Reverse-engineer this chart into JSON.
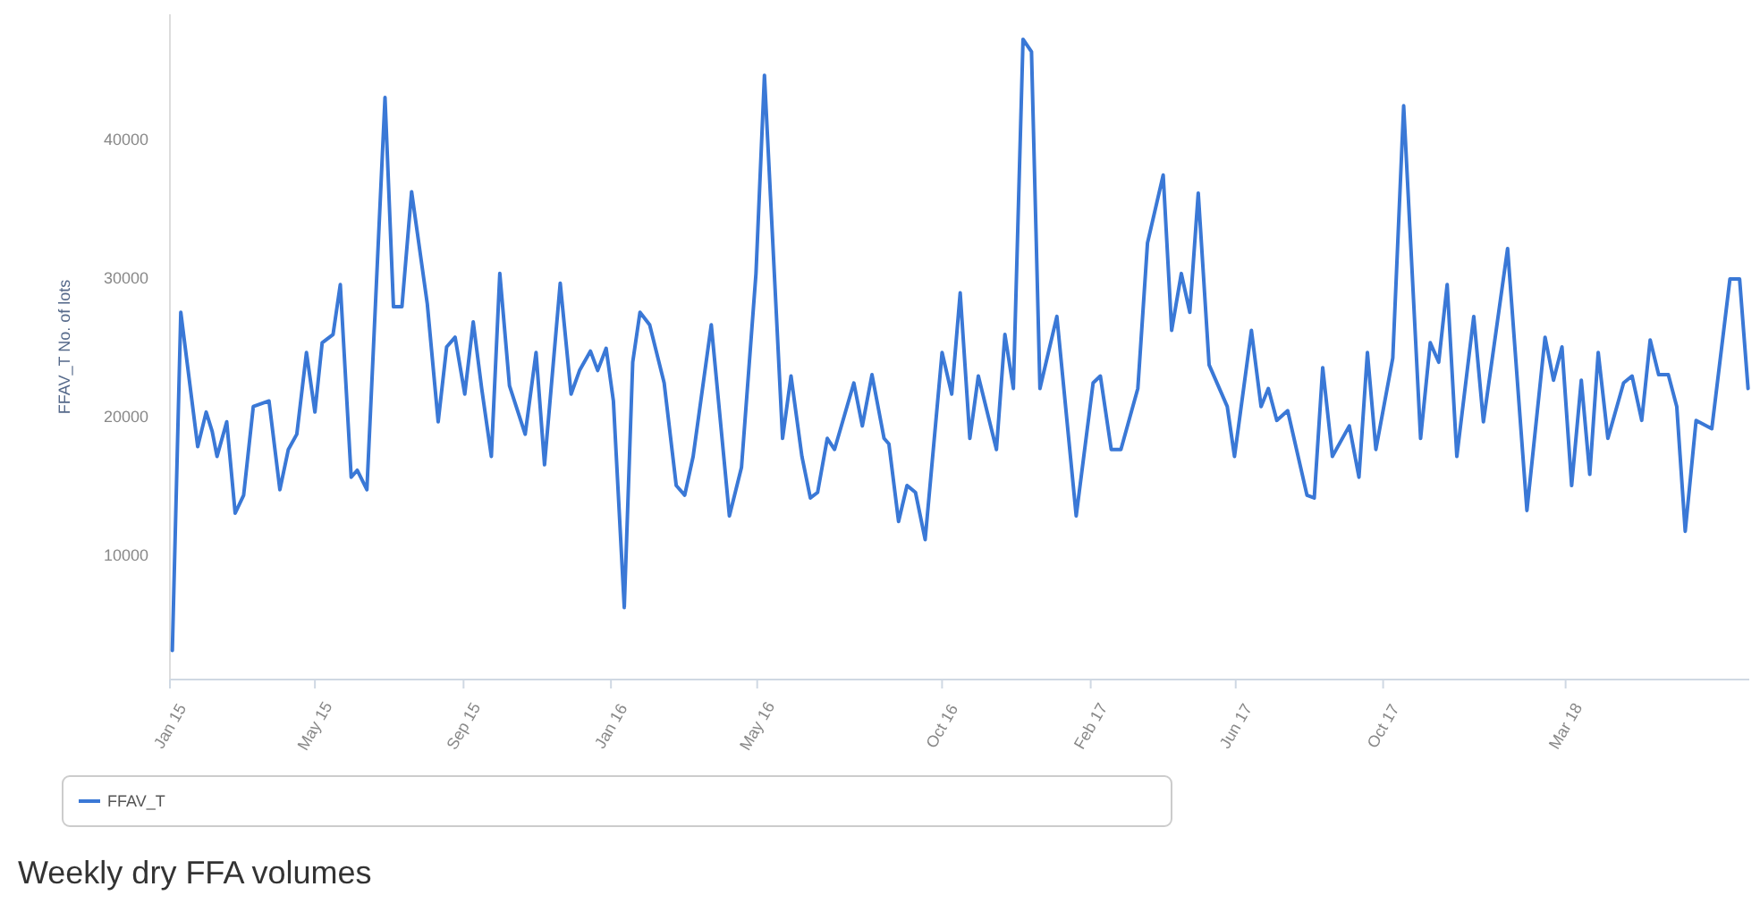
{
  "chart_data": {
    "type": "line",
    "ylabel": "FFAV_T No. of lots",
    "annotations": [
      "Weekly dry FFA volumes"
    ],
    "xlim": [
      "2015-01-01",
      "2018-07-31"
    ],
    "ylim": [
      1000,
      49000
    ],
    "yticks": [
      10000,
      20000,
      30000,
      40000
    ],
    "xticks": [
      {
        "value": "2015-01-01",
        "label": "Jan 15"
      },
      {
        "value": "2015-05-01",
        "label": "May 15"
      },
      {
        "value": "2015-09-01",
        "label": "Sep 15"
      },
      {
        "value": "2016-01-01",
        "label": "Jan 16"
      },
      {
        "value": "2016-05-01",
        "label": "May 16"
      },
      {
        "value": "2016-10-01",
        "label": "Oct 16"
      },
      {
        "value": "2017-02-01",
        "label": "Feb 17"
      },
      {
        "value": "2017-06-01",
        "label": "Jun 17"
      },
      {
        "value": "2017-10-01",
        "label": "Oct 17"
      },
      {
        "value": "2018-03-01",
        "label": "Mar 18"
      }
    ],
    "grid": false,
    "legend": "bottom",
    "marker": "none",
    "line_style": "solid",
    "series": [
      {
        "name": "FFAV_T",
        "color": "#3a78d6",
        "x": [
          "2015-01-03",
          "2015-01-10",
          "2015-01-24",
          "2015-01-31",
          "2015-02-05",
          "2015-02-09",
          "2015-02-17",
          "2015-02-24",
          "2015-03-03",
          "2015-03-11",
          "2015-03-24",
          "2015-04-02",
          "2015-04-09",
          "2015-04-16",
          "2015-04-24",
          "2015-05-01",
          "2015-05-07",
          "2015-05-16",
          "2015-05-22",
          "2015-05-31",
          "2015-06-05",
          "2015-06-13",
          "2015-06-28",
          "2015-07-05",
          "2015-07-12",
          "2015-07-20",
          "2015-08-02",
          "2015-08-11",
          "2015-08-18",
          "2015-08-25",
          "2015-09-02",
          "2015-09-09",
          "2015-09-16",
          "2015-09-24",
          "2015-10-01",
          "2015-10-09",
          "2015-10-22",
          "2015-10-31",
          "2015-11-07",
          "2015-11-20",
          "2015-11-29",
          "2015-12-06",
          "2015-12-15",
          "2015-12-21",
          "2015-12-28",
          "2016-01-03",
          "2016-01-12",
          "2016-01-19",
          "2016-01-25",
          "2016-02-02",
          "2016-02-14",
          "2016-02-24",
          "2016-03-02",
          "2016-03-09",
          "2016-03-24",
          "2016-04-08",
          "2016-04-18",
          "2016-04-30",
          "2016-05-07",
          "2016-05-22",
          "2016-05-29",
          "2016-06-07",
          "2016-06-14",
          "2016-06-20",
          "2016-06-28",
          "2016-07-04",
          "2016-07-20",
          "2016-07-27",
          "2016-08-04",
          "2016-08-14",
          "2016-08-18",
          "2016-08-26",
          "2016-09-02",
          "2016-09-09",
          "2016-09-17",
          "2016-10-01",
          "2016-10-09",
          "2016-10-16",
          "2016-10-24",
          "2016-10-31",
          "2016-11-15",
          "2016-11-22",
          "2016-11-29",
          "2016-12-07",
          "2016-12-14",
          "2016-12-21",
          "2017-01-04",
          "2017-01-20",
          "2017-02-03",
          "2017-02-09",
          "2017-02-18",
          "2017-02-26",
          "2017-03-12",
          "2017-03-20",
          "2017-04-02",
          "2017-04-09",
          "2017-04-17",
          "2017-04-24",
          "2017-05-01",
          "2017-05-10",
          "2017-05-25",
          "2017-05-31",
          "2017-06-14",
          "2017-06-22",
          "2017-06-28",
          "2017-07-05",
          "2017-07-14",
          "2017-07-30",
          "2017-08-05",
          "2017-08-12",
          "2017-08-20",
          "2017-09-03",
          "2017-09-11",
          "2017-09-18",
          "2017-09-25",
          "2017-10-09",
          "2017-10-18",
          "2017-11-01",
          "2017-11-09",
          "2017-11-16",
          "2017-11-23",
          "2017-12-01",
          "2017-12-15",
          "2017-12-23",
          "2018-01-12",
          "2018-01-28",
          "2018-02-12",
          "2018-02-19",
          "2018-02-26",
          "2018-03-06",
          "2018-03-14",
          "2018-03-21",
          "2018-03-28",
          "2018-04-05",
          "2018-04-18",
          "2018-04-25",
          "2018-05-03",
          "2018-05-10",
          "2018-05-17",
          "2018-05-25",
          "2018-06-01",
          "2018-06-08",
          "2018-06-17",
          "2018-06-30",
          "2018-07-15",
          "2018-07-23",
          "2018-07-30"
        ],
        "values": [
          3100,
          27500,
          17800,
          20300,
          18900,
          17100,
          19600,
          13000,
          14300,
          20700,
          21100,
          14700,
          17600,
          18700,
          24600,
          20300,
          25300,
          25900,
          29500,
          15600,
          16100,
          14700,
          43000,
          27900,
          27900,
          36200,
          28100,
          19600,
          25000,
          25700,
          21600,
          26800,
          22000,
          17100,
          30300,
          22200,
          18700,
          24600,
          16500,
          29600,
          21600,
          23300,
          24700,
          23300,
          24900,
          21100,
          6200,
          23900,
          27500,
          26600,
          22400,
          15000,
          14300,
          17100,
          26600,
          12800,
          16300,
          30300,
          44600,
          18400,
          22900,
          17100,
          14100,
          14500,
          18400,
          17600,
          22400,
          19300,
          23000,
          18400,
          18000,
          12400,
          15000,
          14500,
          11100,
          24600,
          21600,
          28900,
          18400,
          22900,
          17600,
          25900,
          22000,
          47200,
          46300,
          22000,
          27200,
          12800,
          22400,
          22900,
          17600,
          17600,
          22000,
          32500,
          37400,
          26200,
          30300,
          27500,
          36100,
          23700,
          20700,
          17100,
          26200,
          20700,
          22000,
          19700,
          20400,
          14300,
          14100,
          23500,
          17100,
          19300,
          15600,
          24600,
          17600,
          24200,
          42400,
          18400,
          25300,
          23900,
          29500,
          17100,
          27200,
          19600,
          32100,
          13200,
          25700,
          22600,
          25000,
          15000,
          22600,
          15800,
          24600,
          18400,
          22400,
          22900,
          19700,
          25500,
          23000,
          23000,
          20700,
          11700,
          19700,
          19100,
          29900,
          29900,
          22000
        ]
      }
    ]
  }
}
